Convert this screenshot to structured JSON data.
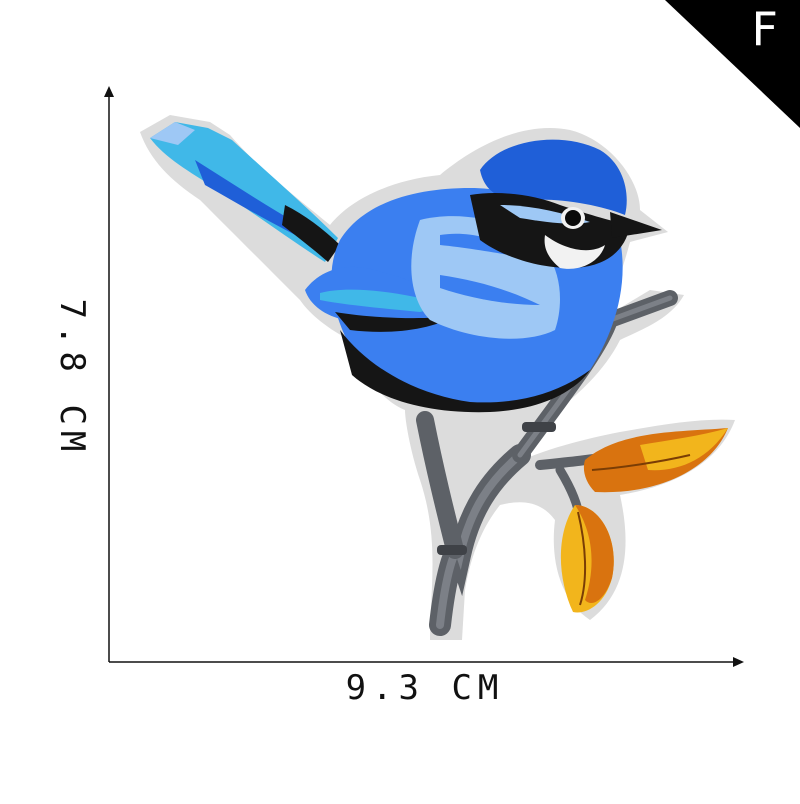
{
  "badge": {
    "letter": "F",
    "background": "#000000"
  },
  "dimensions": {
    "width_label": "9.3 CM",
    "height_label": "7.8 CM"
  },
  "patch": {
    "subject": "bird-on-branch",
    "colors": {
      "blue_dark": "#1f5fd8",
      "blue_mid": "#3b7ff0",
      "blue_light": "#9ec8f5",
      "cyan": "#40b8e8",
      "black": "#151515",
      "white": "#f2f2f2",
      "branch": "#5d6167",
      "leaf_orange": "#d9730f",
      "leaf_yellow": "#f2b51c"
    }
  }
}
